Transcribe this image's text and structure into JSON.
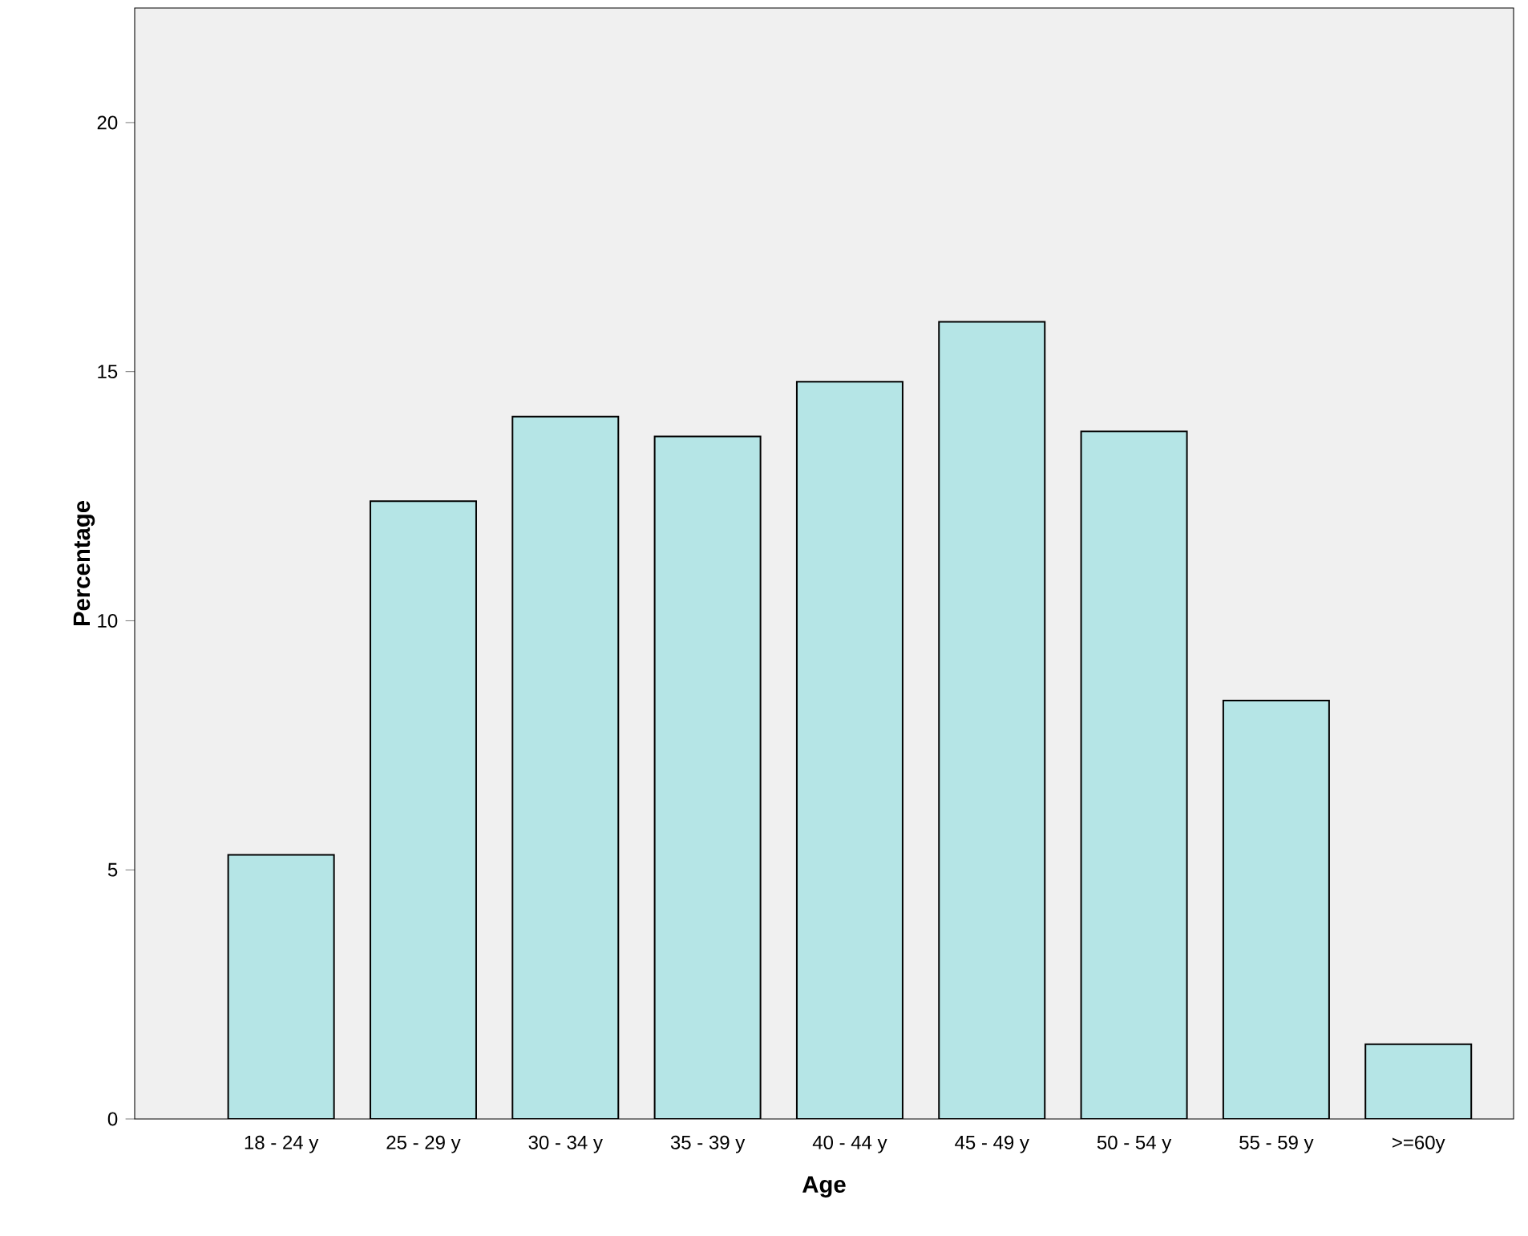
{
  "chart_data": {
    "type": "bar",
    "xlabel": "Age",
    "ylabel": "Percentage",
    "categories": [
      "18 - 24 y",
      "25 - 29 y",
      "30 - 34 y",
      "35 - 39 y",
      "40 - 44 y",
      "45 - 49 y",
      "50 - 54 y",
      "55 - 59 y",
      ">=60y"
    ],
    "values": [
      5.3,
      12.4,
      14.1,
      13.7,
      14.8,
      16.0,
      13.8,
      8.4,
      1.5
    ],
    "color": "#b5e5e6",
    "ylim": [
      0,
      22.3
    ],
    "yticks": [
      0,
      5,
      10,
      15,
      20
    ]
  }
}
